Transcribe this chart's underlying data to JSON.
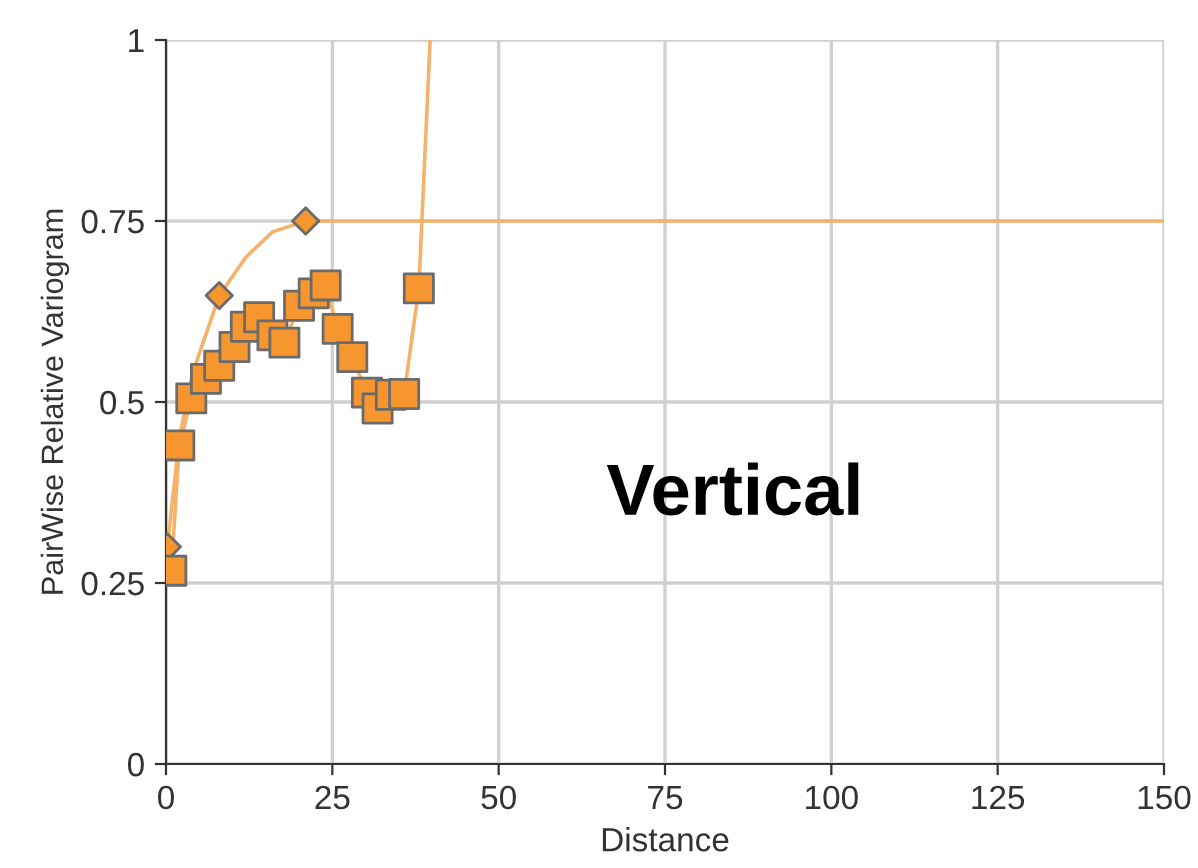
{
  "chart_data": {
    "type": "scatter",
    "xlabel": "Distance",
    "ylabel": "PairWise Relative Variogram",
    "annotations": [
      "Vertical"
    ],
    "xlim": [
      0,
      150
    ],
    "xticks": [
      0,
      25,
      50,
      75,
      100,
      125,
      150
    ],
    "ylim": [
      0,
      1
    ],
    "yticks": [
      0,
      {
        "value": 0.25,
        "label": "0.25"
      },
      {
        "value": 0.5,
        "label": "0.5"
      },
      {
        "value": 0.75,
        "label": "0.75"
      },
      1
    ],
    "grid": true,
    "series": [
      {
        "type": "line",
        "color": "#f5b26b",
        "marker": "none",
        "x": [
          0.2,
          2,
          4,
          8,
          12,
          16,
          21,
          150
        ],
        "values": [
          0.3,
          0.45,
          0.54,
          0.647,
          0.7,
          0.735,
          0.75,
          0.75
        ]
      },
      {
        "type": "line",
        "color": "#f5b26b",
        "marker": "none",
        "x": [
          0.8,
          2.0,
          3.8,
          6,
          8,
          10.3,
          12,
          14,
          16,
          17.8,
          20,
          22.2,
          24,
          25.8,
          28,
          30.2,
          31.8,
          33.8,
          35.8,
          38,
          39.7
        ],
        "values": [
          0.267,
          0.44,
          0.505,
          0.532,
          0.55,
          0.576,
          0.604,
          0.617,
          0.592,
          0.582,
          0.633,
          0.65,
          0.661,
          0.601,
          0.562,
          0.513,
          0.491,
          0.51,
          0.511,
          0.657,
          1.0
        ]
      },
      {
        "color": "#f7962f",
        "marker": "diamond",
        "x": [
          0.2,
          8,
          21
        ],
        "values": [
          0.3,
          0.647,
          0.75
        ]
      },
      {
        "color": "#f7962f",
        "marker": "square",
        "x": [
          0.8,
          2.0,
          3.8,
          6,
          8,
          10.3,
          12,
          14,
          16,
          17.8,
          20,
          22.2,
          24,
          25.8,
          28,
          30.2,
          31.8,
          33.8,
          35.8,
          38
        ],
        "values": [
          0.267,
          0.44,
          0.505,
          0.532,
          0.55,
          0.576,
          0.604,
          0.617,
          0.592,
          0.582,
          0.633,
          0.65,
          0.661,
          0.601,
          0.562,
          0.513,
          0.491,
          0.51,
          0.511,
          0.657
        ]
      }
    ]
  }
}
